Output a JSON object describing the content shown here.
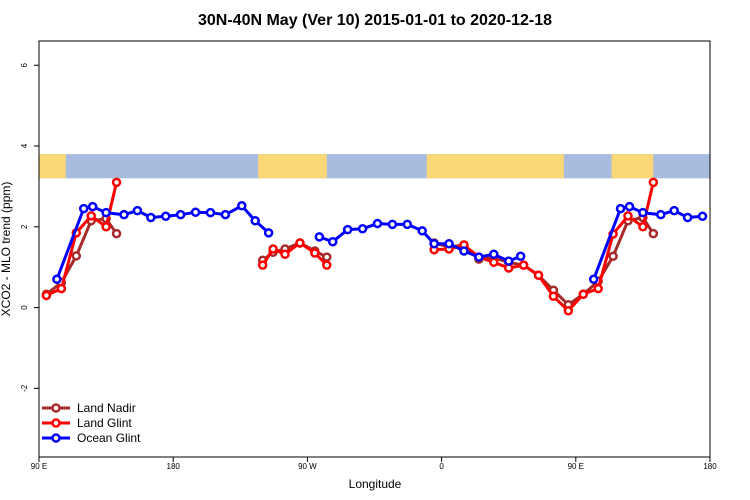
{
  "chart_data": {
    "type": "line",
    "title": "30N-40N May (Ver 10)   2015-01-01 to 2020-12-18",
    "xlabel": "Longitude",
    "ylabel": "XCO2 - MLO trend (ppm)",
    "xlim": [
      0,
      450
    ],
    "ylim": [
      -3.7,
      6.6
    ],
    "x_ticks": [
      {
        "value": 0,
        "label": "90 E"
      },
      {
        "value": 90,
        "label": "180"
      },
      {
        "value": 180,
        "label": "90 W"
      },
      {
        "value": 270,
        "label": "0"
      },
      {
        "value": 360,
        "label": "90 E"
      },
      {
        "value": 450,
        "label": "180"
      }
    ],
    "y_ticks": [
      {
        "value": -2,
        "label": "-2"
      },
      {
        "value": 0,
        "label": "0"
      },
      {
        "value": 2,
        "label": "2"
      },
      {
        "value": 4,
        "label": "4"
      },
      {
        "value": 6,
        "label": "6"
      }
    ],
    "map_band": {
      "ymin": 3.2,
      "ymax": 3.8,
      "ocean_color": "#a8bce0",
      "land_color": "#fad878"
    },
    "legend": {
      "position": "bottom-left"
    },
    "series": [
      {
        "name": "Land Nadir",
        "color": "#a52a2a",
        "segments": [
          [
            [
              5,
              0.33
            ],
            [
              15,
              0.62
            ],
            [
              25,
              1.28
            ],
            [
              35,
              2.15
            ],
            [
              45,
              2.2
            ],
            [
              52,
              1.83
            ]
          ],
          [
            [
              150,
              1.17
            ],
            [
              157,
              1.37
            ],
            [
              165,
              1.45
            ],
            [
              175,
              1.6
            ],
            [
              185,
              1.4
            ],
            [
              193,
              1.25
            ]
          ],
          [
            [
              265,
              1.6
            ],
            [
              275,
              1.5
            ],
            [
              285,
              1.55
            ],
            [
              295,
              1.2
            ],
            [
              305,
              1.23
            ],
            [
              315,
              1.12
            ],
            [
              325,
              1.05
            ],
            [
              335,
              0.8
            ],
            [
              345,
              0.43
            ],
            [
              355,
              0.07
            ],
            [
              365,
              0.33
            ],
            [
              375,
              0.65
            ],
            [
              385,
              1.27
            ],
            [
              395,
              2.15
            ],
            [
              405,
              2.23
            ],
            [
              412,
              1.83
            ]
          ]
        ]
      },
      {
        "name": "Land Glint",
        "color": "#ff0000",
        "segments": [
          [
            [
              5,
              0.3
            ],
            [
              15,
              0.47
            ],
            [
              25,
              1.85
            ],
            [
              35,
              2.27
            ],
            [
              45,
              2.0
            ],
            [
              52,
              3.1
            ]
          ],
          [
            [
              150,
              1.05
            ],
            [
              157,
              1.45
            ],
            [
              165,
              1.32
            ],
            [
              175,
              1.6
            ],
            [
              185,
              1.35
            ],
            [
              193,
              1.05
            ]
          ],
          [
            [
              265,
              1.43
            ],
            [
              275,
              1.45
            ],
            [
              285,
              1.55
            ],
            [
              295,
              1.25
            ],
            [
              305,
              1.12
            ],
            [
              315,
              0.98
            ],
            [
              325,
              1.05
            ],
            [
              335,
              0.8
            ],
            [
              345,
              0.28
            ],
            [
              355,
              -0.08
            ],
            [
              365,
              0.33
            ],
            [
              375,
              0.47
            ],
            [
              385,
              1.82
            ],
            [
              395,
              2.27
            ],
            [
              405,
              2.0
            ],
            [
              412,
              3.1
            ]
          ]
        ]
      },
      {
        "name": "Ocean Glint",
        "color": "#0000ff",
        "segments": [
          [
            [
              12,
              0.7
            ],
            [
              30,
              2.45
            ],
            [
              36,
              2.5
            ],
            [
              45,
              2.35
            ],
            [
              57,
              2.3
            ],
            [
              66,
              2.4
            ],
            [
              75,
              2.23
            ],
            [
              85,
              2.26
            ],
            [
              95,
              2.3
            ],
            [
              105,
              2.36
            ],
            [
              115,
              2.35
            ],
            [
              125,
              2.3
            ],
            [
              136,
              2.52
            ],
            [
              145,
              2.15
            ],
            [
              154,
              1.85
            ]
          ],
          [
            [
              188,
              1.75
            ],
            [
              197,
              1.63
            ],
            [
              207,
              1.93
            ],
            [
              217,
              1.95
            ],
            [
              227,
              2.08
            ],
            [
              237,
              2.06
            ],
            [
              247,
              2.06
            ],
            [
              257,
              1.9
            ],
            [
              265,
              1.58
            ],
            [
              275,
              1.58
            ],
            [
              285,
              1.4
            ],
            [
              295,
              1.25
            ],
            [
              305,
              1.32
            ],
            [
              315,
              1.15
            ],
            [
              323,
              1.27
            ]
          ],
          [
            [
              372,
              0.7
            ],
            [
              390,
              2.45
            ],
            [
              396,
              2.5
            ],
            [
              405,
              2.35
            ],
            [
              417,
              2.3
            ],
            [
              426,
              2.4
            ],
            [
              435,
              2.23
            ],
            [
              445,
              2.26
            ]
          ]
        ]
      }
    ]
  }
}
